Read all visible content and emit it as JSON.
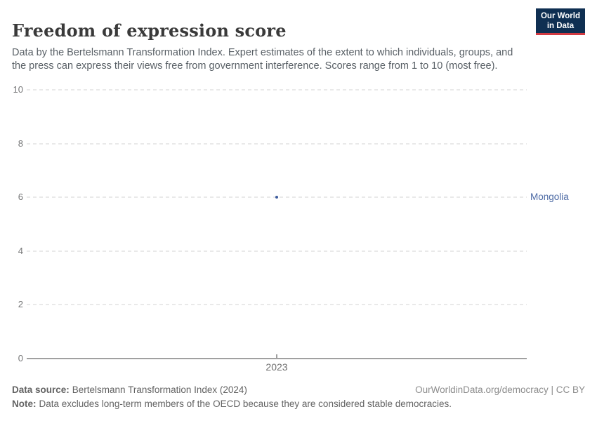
{
  "header": {
    "title": "Freedom of expression score",
    "subtitle": "Data by the Bertelsmann Transformation Index. Expert estimates of the extent to which individuals, groups, and the press can express their views free from government interference. Scores range from 1 to 10 (most free).",
    "logo": {
      "line1": "Our World",
      "line2": "in Data",
      "bg_color": "#0f2f52",
      "accent_color": "#d23a42"
    }
  },
  "chart_data": {
    "type": "scatter",
    "title": "Freedom of expression score",
    "x": [
      2023
    ],
    "x_tick_labels": [
      "2023"
    ],
    "y_ticks": [
      0,
      2,
      4,
      6,
      8,
      10
    ],
    "ylim": [
      0,
      10
    ],
    "grid": "horizontal-dashed",
    "legend_position": "right-of-plot",
    "series": [
      {
        "name": "Mongolia",
        "points": [
          {
            "x": 2023,
            "y": 6
          }
        ],
        "color": "#3d5c9e",
        "label_color": "#4e6ba5"
      }
    ]
  },
  "footer": {
    "data_source_label": "Data source:",
    "data_source_value": "Bertelsmann Transformation Index (2024)",
    "attribution": "OurWorldinData.org/democracy | CC BY",
    "note_label": "Note:",
    "note_value": "Data excludes long-term members of the OECD because they are considered stable democracies."
  }
}
